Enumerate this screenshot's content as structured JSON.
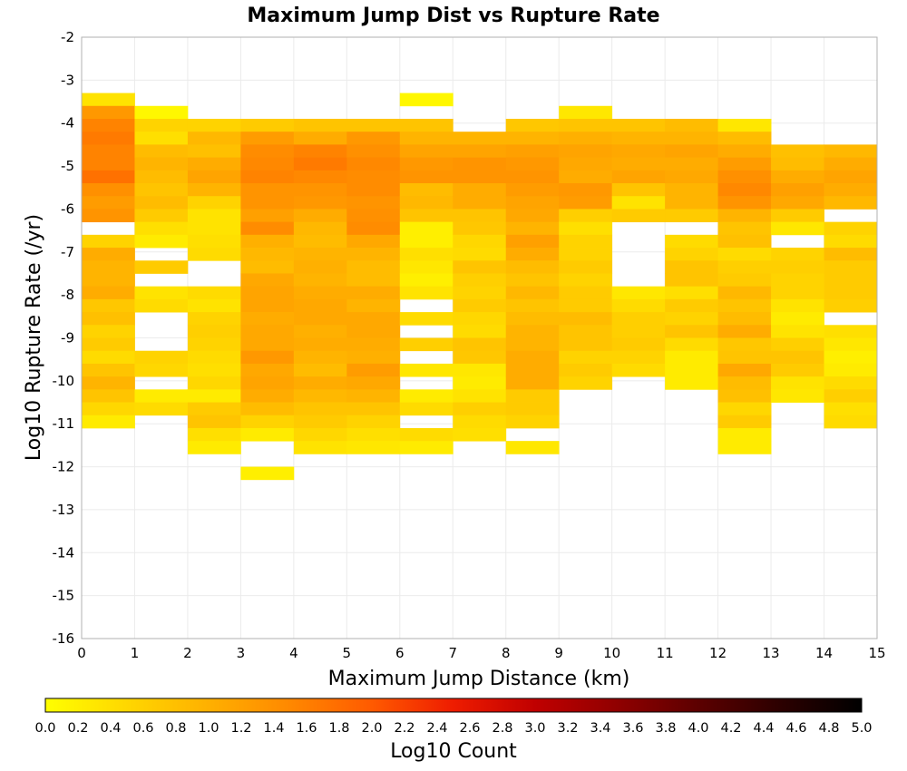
{
  "chart_data": {
    "type": "heatmap",
    "title": "Maximum Jump Dist vs Rupture Rate",
    "xlabel": "Maximum Jump Distance (km)",
    "ylabel": "Log10 Rupture Rate (/yr)",
    "xlim": [
      0,
      15
    ],
    "ylim": [
      -16,
      -2
    ],
    "x_ticks": [
      "0",
      "1",
      "2",
      "3",
      "4",
      "5",
      "6",
      "7",
      "8",
      "9",
      "10",
      "11",
      "12",
      "13",
      "14",
      "15"
    ],
    "y_ticks": [
      "-2",
      "-3",
      "-4",
      "-5",
      "-6",
      "-7",
      "-8",
      "-9",
      "-10",
      "-11",
      "-12",
      "-13",
      "-14",
      "-15",
      "-16"
    ],
    "colorbar": {
      "label": "Log10 Count",
      "range": [
        0,
        5
      ],
      "ticks": [
        "0.0",
        "0.2",
        "0.4",
        "0.6",
        "0.8",
        "1.0",
        "1.2",
        "1.4",
        "1.6",
        "1.8",
        "2.0",
        "2.2",
        "2.4",
        "2.6",
        "2.8",
        "3.0",
        "3.2",
        "3.4",
        "3.6",
        "3.8",
        "4.0",
        "4.2",
        "4.4",
        "4.6",
        "4.8",
        "5.0"
      ],
      "colors": [
        "#ffff00",
        "#ffd700",
        "#ffb000",
        "#ff8800",
        "#ff5a00",
        "#ee1c00",
        "#c00000",
        "#900000",
        "#5c0000",
        "#2c0000",
        "#000000"
      ]
    },
    "grid": true,
    "bin_width_x": 1,
    "bin_height_y": 0.3,
    "columns": [
      {
        "x": 0,
        "y_top": -3.3,
        "values": [
          0.35,
          1.3,
          1.55,
          1.65,
          1.55,
          1.55,
          1.75,
          1.4,
          1.25,
          1.35,
          null,
          0.55,
          1.05,
          0.95,
          0.95,
          1.05,
          0.7,
          0.8,
          0.55,
          0.65,
          0.45,
          0.75,
          0.95,
          0.75,
          0.5,
          0.25
        ]
      },
      {
        "x": 1,
        "y_top": -3.6,
        "values": [
          0.1,
          0.55,
          0.4,
          0.85,
          0.95,
          0.85,
          0.75,
          0.85,
          0.65,
          0.4,
          0.25,
          null,
          0.65,
          null,
          0.35,
          0.45,
          null,
          null,
          null,
          0.55,
          0.5,
          null,
          0.25,
          0.45
        ]
      },
      {
        "x": 2,
        "y_top": -3.9,
        "values": [
          0.55,
          0.9,
          0.8,
          1.05,
          1.15,
          0.95,
          0.55,
          0.35,
          0.35,
          0.4,
          0.45,
          null,
          null,
          0.45,
          0.35,
          0.55,
          0.6,
          0.55,
          0.45,
          0.4,
          0.5,
          0.25,
          0.65,
          0.75,
          0.4,
          0.25
        ]
      },
      {
        "x": 3,
        "y_top": -3.9,
        "values": [
          0.65,
          1.25,
          1.45,
          1.5,
          1.55,
          1.35,
          1.35,
          1.2,
          1.45,
          1.0,
          0.9,
          0.85,
          1.1,
          1.15,
          1.15,
          1.05,
          1.1,
          1.1,
          1.3,
          1.1,
          1.15,
          1.05,
          0.85,
          0.55,
          0.25,
          null,
          null,
          0.2
        ]
      },
      {
        "x": 4,
        "y_top": -3.9,
        "values": [
          0.75,
          1.05,
          1.55,
          1.65,
          1.5,
          1.35,
          1.3,
          1.05,
          0.9,
          0.85,
          0.95,
          1.0,
          0.95,
          1.05,
          1.1,
          1.1,
          1.0,
          1.05,
          0.95,
          0.85,
          1.05,
          0.9,
          0.75,
          0.65,
          0.5,
          0.35
        ]
      },
      {
        "x": 5,
        "y_top": -3.9,
        "values": [
          0.75,
          1.3,
          1.4,
          1.5,
          1.45,
          1.45,
          1.35,
          1.4,
          1.45,
          1.1,
          0.95,
          0.85,
          0.85,
          1.05,
          0.95,
          1.1,
          1.1,
          1.05,
          1.0,
          1.25,
          1.1,
          0.95,
          0.75,
          0.55,
          0.4,
          0.3
        ]
      },
      {
        "x": 6,
        "y_top": -3.3,
        "values": [
          0.1,
          null,
          0.75,
          0.95,
          1.15,
          1.3,
          1.35,
          0.85,
          0.9,
          0.75,
          0.2,
          0.2,
          0.4,
          0.3,
          0.2,
          0.35,
          null,
          0.45,
          null,
          0.6,
          null,
          0.3,
          null,
          0.25,
          0.45,
          null,
          0.45,
          0.25
        ]
      },
      {
        "x": 7,
        "y_top": -4.2,
        "values": [
          0.95,
          1.15,
          1.35,
          1.35,
          1.05,
          1.05,
          0.75,
          0.7,
          0.5,
          0.45,
          0.75,
          0.6,
          0.55,
          0.65,
          0.5,
          0.45,
          0.75,
          0.7,
          0.3,
          0.25,
          0.35,
          0.6,
          0.45,
          0.4
        ]
      },
      {
        "x": 8,
        "y_top": -3.9,
        "values": [
          0.7,
          0.95,
          1.2,
          1.3,
          1.35,
          1.25,
          1.15,
          1.1,
          0.95,
          1.2,
          1.05,
          0.85,
          0.75,
          0.9,
          0.75,
          0.85,
          0.95,
          0.95,
          1.05,
          1.05,
          1.05,
          0.65,
          0.65,
          0.55,
          null,
          0.3
        ]
      },
      {
        "x": 9,
        "y_top": -3.6,
        "values": [
          0.3,
          0.75,
          1.0,
          1.15,
          1.1,
          1.05,
          1.3,
          1.25,
          0.6,
          0.4,
          0.55,
          0.55,
          0.65,
          0.55,
          0.65,
          0.65,
          0.85,
          0.75,
          0.75,
          0.55,
          0.65,
          0.55
        ]
      },
      {
        "x": 10,
        "y_top": -3.9,
        "values": [
          0.75,
          0.95,
          1.1,
          1.05,
          1.15,
          0.75,
          0.35,
          0.65,
          null,
          null,
          null,
          null,
          null,
          0.3,
          0.45,
          0.6,
          0.6,
          0.65,
          0.55,
          0.45
        ]
      },
      {
        "x": 11,
        "y_top": -3.9,
        "values": [
          0.85,
          0.95,
          1.15,
          1.05,
          1.1,
          0.95,
          0.95,
          0.65,
          null,
          0.45,
          0.55,
          0.75,
          0.75,
          0.4,
          0.65,
          0.55,
          0.75,
          0.45,
          0.25,
          0.25,
          0.25
        ]
      },
      {
        "x": 12,
        "y_top": -3.9,
        "values": [
          0.3,
          0.85,
          1.05,
          1.25,
          1.4,
          1.5,
          1.35,
          0.95,
          0.75,
          0.8,
          0.45,
          0.6,
          0.65,
          0.9,
          0.75,
          0.85,
          1.05,
          0.7,
          0.75,
          1.1,
          0.85,
          0.8,
          0.5,
          0.65,
          0.25,
          0.25
        ]
      },
      {
        "x": 13,
        "y_top": -4.5,
        "values": [
          0.8,
          0.85,
          1.05,
          1.2,
          1.1,
          0.65,
          0.3,
          null,
          0.55,
          0.6,
          0.55,
          0.55,
          0.35,
          0.25,
          0.35,
          0.6,
          0.75,
          0.65,
          0.35,
          0.3
        ]
      },
      {
        "x": 14,
        "y_top": -4.5,
        "values": [
          0.9,
          1.05,
          1.15,
          1.05,
          0.9,
          null,
          0.55,
          0.45,
          0.85,
          0.65,
          0.65,
          0.65,
          0.6,
          null,
          0.4,
          0.3,
          0.2,
          0.25,
          0.45,
          0.6,
          0.4,
          0.45
        ]
      }
    ]
  }
}
